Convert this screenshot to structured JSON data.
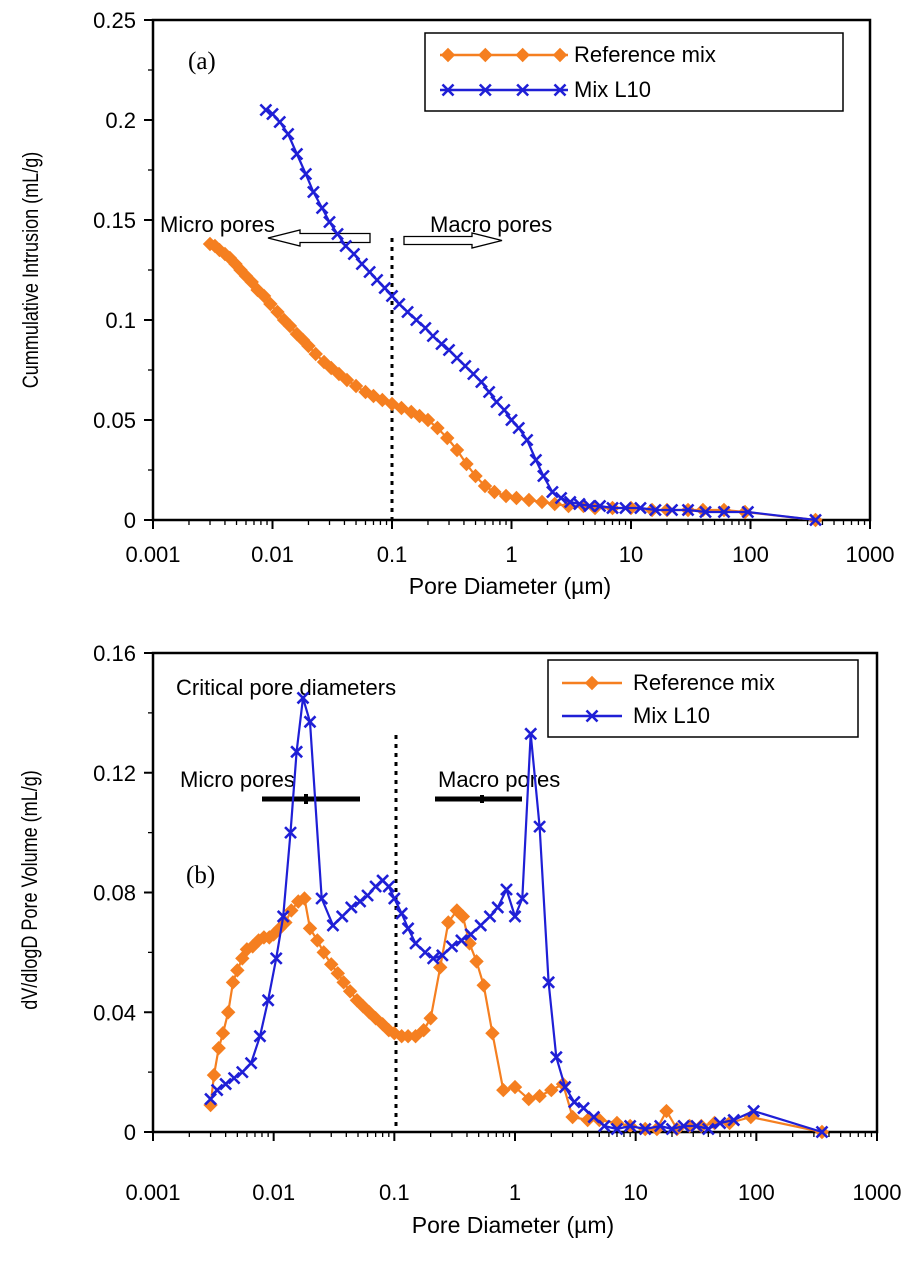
{
  "colors": {
    "reference": "#F57F20",
    "l10": "#1F1FD6",
    "axis": "#000000"
  },
  "chart_data": [
    {
      "type": "line",
      "panel_label": "(a)",
      "xlabel": "Pore Diameter (µm)",
      "ylabel": "Cummulative Intrusion (mL/g)",
      "xscale": "log",
      "xlim": [
        0.001,
        1000
      ],
      "ylim": [
        0,
        0.25
      ],
      "xticks": [
        "0.001",
        "0.01",
        "0.1",
        "1",
        "10",
        "100",
        "1000"
      ],
      "yticks": [
        "0",
        "0.05",
        "0.1",
        "0.15",
        "0.2",
        "0.25"
      ],
      "legend_position": "top-right",
      "annotations": [
        "Micro pores",
        "Macro pores"
      ],
      "divider_x": 0.1,
      "series": [
        {
          "name": "Reference mix",
          "marker": "diamond",
          "x": [
            0.003,
            0.0033,
            0.0036,
            0.004,
            0.0044,
            0.0049,
            0.0054,
            0.006,
            0.0067,
            0.0075,
            0.0085,
            0.0096,
            0.011,
            0.0125,
            0.014,
            0.016,
            0.018,
            0.02,
            0.023,
            0.027,
            0.031,
            0.036,
            0.042,
            0.05,
            0.06,
            0.07,
            0.083,
            0.1,
            0.12,
            0.145,
            0.17,
            0.2,
            0.24,
            0.29,
            0.35,
            0.42,
            0.5,
            0.6,
            0.72,
            0.9,
            1.1,
            1.4,
            1.8,
            2.3,
            3,
            4,
            5,
            7,
            10,
            15,
            20,
            30,
            40,
            60,
            90,
            350
          ],
          "y": [
            0.138,
            0.137,
            0.135,
            0.133,
            0.131,
            0.128,
            0.125,
            0.122,
            0.119,
            0.115,
            0.112,
            0.108,
            0.104,
            0.1,
            0.097,
            0.093,
            0.09,
            0.087,
            0.083,
            0.079,
            0.076,
            0.073,
            0.07,
            0.067,
            0.064,
            0.062,
            0.06,
            0.058,
            0.056,
            0.054,
            0.052,
            0.05,
            0.046,
            0.041,
            0.035,
            0.028,
            0.022,
            0.017,
            0.014,
            0.012,
            0.011,
            0.01,
            0.009,
            0.008,
            0.007,
            0.007,
            0.006,
            0.006,
            0.006,
            0.005,
            0.005,
            0.005,
            0.005,
            0.005,
            0.004,
            0
          ]
        },
        {
          "name": "Mix L10",
          "marker": "x",
          "x": [
            0.0088,
            0.01,
            0.0115,
            0.0135,
            0.016,
            0.019,
            0.022,
            0.026,
            0.03,
            0.035,
            0.041,
            0.048,
            0.056,
            0.065,
            0.075,
            0.087,
            0.1,
            0.115,
            0.135,
            0.16,
            0.19,
            0.22,
            0.26,
            0.3,
            0.35,
            0.41,
            0.48,
            0.56,
            0.65,
            0.75,
            0.87,
            1,
            1.15,
            1.35,
            1.6,
            1.85,
            2.2,
            2.6,
            3.1,
            3.7,
            4.5,
            5.5,
            7,
            9,
            12,
            16,
            22,
            30,
            42,
            60,
            95,
            350
          ],
          "y": [
            0.205,
            0.203,
            0.199,
            0.193,
            0.183,
            0.173,
            0.164,
            0.156,
            0.149,
            0.143,
            0.137,
            0.133,
            0.128,
            0.124,
            0.12,
            0.116,
            0.112,
            0.108,
            0.104,
            0.1,
            0.096,
            0.092,
            0.088,
            0.085,
            0.081,
            0.077,
            0.073,
            0.069,
            0.064,
            0.059,
            0.055,
            0.05,
            0.046,
            0.04,
            0.03,
            0.022,
            0.014,
            0.011,
            0.009,
            0.008,
            0.007,
            0.007,
            0.006,
            0.006,
            0.006,
            0.005,
            0.005,
            0.005,
            0.004,
            0.004,
            0.004,
            0
          ]
        }
      ]
    },
    {
      "type": "line",
      "panel_label": "(b)",
      "xlabel": "Pore Diameter (µm)",
      "ylabel": "dV/dlogD Pore Volume (mL/g)",
      "xscale": "log",
      "xlim": [
        0.001,
        1000
      ],
      "ylim": [
        0,
        0.16
      ],
      "xticks": [
        "0.001",
        "0.01",
        "0.1",
        "1",
        "10",
        "100",
        "1000"
      ],
      "yticks": [
        "0",
        "0.04",
        "0.08",
        "0.12",
        "0.16"
      ],
      "legend_position": "top-right",
      "annotations": [
        "Critical pore diameters",
        "Micro pores",
        "Macro pores"
      ],
      "divider_x": 0.1,
      "series": [
        {
          "name": "Reference mix",
          "marker": "diamond",
          "x": [
            0.003,
            0.0032,
            0.0035,
            0.0038,
            0.0042,
            0.0046,
            0.005,
            0.0055,
            0.006,
            0.0067,
            0.0075,
            0.0083,
            0.0092,
            0.01,
            0.0112,
            0.0125,
            0.014,
            0.016,
            0.018,
            0.02,
            0.023,
            0.026,
            0.03,
            0.034,
            0.038,
            0.043,
            0.049,
            0.055,
            0.062,
            0.07,
            0.08,
            0.09,
            0.1,
            0.115,
            0.13,
            0.15,
            0.175,
            0.2,
            0.24,
            0.28,
            0.33,
            0.37,
            0.42,
            0.48,
            0.55,
            0.65,
            0.8,
            1,
            1.3,
            1.6,
            2,
            2.5,
            3,
            4,
            5,
            7,
            9,
            12,
            15,
            18,
            22,
            28,
            35,
            45,
            60,
            90,
            350
          ],
          "y": [
            0.009,
            0.019,
            0.028,
            0.033,
            0.04,
            0.05,
            0.054,
            0.058,
            0.061,
            0.062,
            0.064,
            0.065,
            0.065,
            0.066,
            0.068,
            0.07,
            0.074,
            0.077,
            0.078,
            0.068,
            0.064,
            0.06,
            0.056,
            0.053,
            0.05,
            0.047,
            0.044,
            0.042,
            0.04,
            0.038,
            0.036,
            0.034,
            0.033,
            0.032,
            0.032,
            0.032,
            0.034,
            0.038,
            0.055,
            0.07,
            0.074,
            0.072,
            0.063,
            0.057,
            0.049,
            0.033,
            0.014,
            0.015,
            0.011,
            0.012,
            0.014,
            0.016,
            0.005,
            0.004,
            0.004,
            0.003,
            0.002,
            0.001,
            0.001,
            0.007,
            0.001,
            0.002,
            0.002,
            0.003,
            0.003,
            0.005,
            0
          ]
        },
        {
          "name": "Mix L10",
          "marker": "x",
          "x": [
            0.003,
            0.0034,
            0.004,
            0.0047,
            0.0055,
            0.0065,
            0.0077,
            0.009,
            0.0105,
            0.012,
            0.0138,
            0.0155,
            0.0175,
            0.02,
            0.025,
            0.031,
            0.037,
            0.044,
            0.052,
            0.06,
            0.07,
            0.08,
            0.09,
            0.1,
            0.115,
            0.13,
            0.15,
            0.18,
            0.21,
            0.25,
            0.3,
            0.36,
            0.43,
            0.52,
            0.62,
            0.72,
            0.85,
            1,
            1.15,
            1.35,
            1.6,
            1.9,
            2.2,
            2.6,
            3.1,
            3.7,
            4.5,
            5.5,
            7,
            9,
            12,
            16,
            20,
            25,
            32,
            40,
            50,
            65,
            95,
            350
          ],
          "y": [
            0.011,
            0.014,
            0.016,
            0.018,
            0.02,
            0.023,
            0.032,
            0.044,
            0.058,
            0.072,
            0.1,
            0.127,
            0.145,
            0.137,
            0.078,
            0.069,
            0.072,
            0.075,
            0.077,
            0.079,
            0.082,
            0.084,
            0.082,
            0.078,
            0.073,
            0.068,
            0.063,
            0.06,
            0.058,
            0.059,
            0.062,
            0.064,
            0.066,
            0.069,
            0.072,
            0.075,
            0.081,
            0.072,
            0.078,
            0.133,
            0.102,
            0.05,
            0.025,
            0.015,
            0.01,
            0.008,
            0.005,
            0.002,
            0.001,
            0.002,
            0.001,
            0.002,
            0.001,
            0.002,
            0.002,
            0.001,
            0.003,
            0.004,
            0.007,
            0
          ]
        }
      ]
    }
  ]
}
